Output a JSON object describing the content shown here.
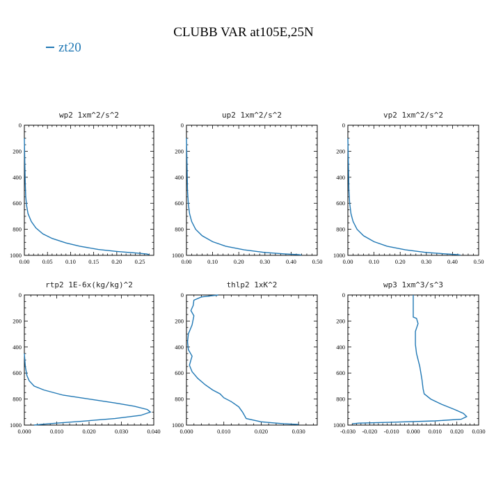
{
  "title": "CLUBB VAR at105E,25N",
  "legend": {
    "label": "zt20",
    "color": "#1f77b4"
  },
  "chart_data": [
    {
      "type": "line",
      "title": "wp2  1xm^2/s^2",
      "xlim": [
        0,
        0.28
      ],
      "ylim": [
        0,
        1000
      ],
      "xticks": [
        0,
        0.05,
        0.1,
        0.15,
        0.2,
        0.25
      ],
      "xtick_labels": [
        "0.00",
        "0.05",
        "0.10",
        "0.15",
        "0.20",
        "0.25"
      ],
      "yticks": [
        0,
        200,
        400,
        600,
        800,
        1000
      ],
      "ytick_labels": [
        "0",
        "200",
        "400",
        "600",
        "800",
        "1000"
      ],
      "series": [
        {
          "name": "zt20",
          "color": "#1f77b4",
          "x": [
            0.0,
            0.001,
            0.002,
            0.003,
            0.005,
            0.008,
            0.015,
            0.025,
            0.04,
            0.06,
            0.09,
            0.12,
            0.16,
            0.2,
            0.24,
            0.265,
            0.27
          ],
          "y": [
            100,
            300,
            450,
            550,
            620,
            680,
            740,
            790,
            835,
            870,
            905,
            930,
            955,
            970,
            982,
            990,
            995
          ]
        }
      ]
    },
    {
      "type": "line",
      "title": "up2  1xm^2/s^2",
      "xlim": [
        0,
        0.5
      ],
      "ylim": [
        0,
        1000
      ],
      "xticks": [
        0,
        0.1,
        0.2,
        0.3,
        0.4,
        0.5
      ],
      "xtick_labels": [
        "0.00",
        "0.10",
        "0.20",
        "0.30",
        "0.40",
        "0.50"
      ],
      "yticks": [
        0,
        200,
        400,
        600,
        800,
        1000
      ],
      "ytick_labels": [
        "0",
        "200",
        "400",
        "600",
        "800",
        "1000"
      ],
      "series": [
        {
          "name": "zt20",
          "color": "#1f77b4",
          "x": [
            0.0,
            0.002,
            0.004,
            0.007,
            0.012,
            0.02,
            0.035,
            0.06,
            0.1,
            0.15,
            0.22,
            0.3,
            0.38,
            0.43,
            0.44
          ],
          "y": [
            100,
            300,
            500,
            600,
            680,
            740,
            800,
            850,
            895,
            930,
            958,
            978,
            990,
            995,
            998
          ]
        }
      ]
    },
    {
      "type": "line",
      "title": "vp2  1xm^2/s^2",
      "xlim": [
        0,
        0.5
      ],
      "ylim": [
        0,
        1000
      ],
      "xticks": [
        0,
        0.1,
        0.2,
        0.3,
        0.4,
        0.5
      ],
      "xtick_labels": [
        "0.00",
        "0.10",
        "0.20",
        "0.30",
        "0.40",
        "0.50"
      ],
      "yticks": [
        0,
        200,
        400,
        600,
        800,
        1000
      ],
      "ytick_labels": [
        "0",
        "200",
        "400",
        "600",
        "800",
        "1000"
      ],
      "series": [
        {
          "name": "zt20",
          "color": "#1f77b4",
          "x": [
            0.0,
            0.002,
            0.004,
            0.007,
            0.012,
            0.02,
            0.035,
            0.06,
            0.1,
            0.15,
            0.22,
            0.3,
            0.38,
            0.42,
            0.43
          ],
          "y": [
            100,
            300,
            500,
            600,
            680,
            740,
            800,
            850,
            895,
            930,
            958,
            978,
            990,
            995,
            998
          ]
        }
      ]
    },
    {
      "type": "line",
      "title": "rtp2  1E-6x(kg/kg)^2",
      "xlim": [
        0,
        0.04
      ],
      "ylim": [
        0,
        1000
      ],
      "xticks": [
        0,
        0.01,
        0.02,
        0.03,
        0.04
      ],
      "xtick_labels": [
        "0.000",
        "0.010",
        "0.020",
        "0.030",
        "0.040"
      ],
      "yticks": [
        0,
        200,
        400,
        600,
        800,
        1000
      ],
      "ytick_labels": [
        "0",
        "200",
        "400",
        "600",
        "800",
        "1000"
      ],
      "series": [
        {
          "name": "zt20",
          "color": "#1f77b4",
          "x": [
            0.0,
            0.0003,
            0.0008,
            0.0015,
            0.003,
            0.006,
            0.012,
            0.02,
            0.028,
            0.034,
            0.038,
            0.039,
            0.036,
            0.028,
            0.018,
            0.01,
            0.005,
            0.003
          ],
          "y": [
            450,
            550,
            620,
            660,
            700,
            730,
            770,
            800,
            830,
            855,
            880,
            900,
            925,
            950,
            970,
            985,
            995,
            1000
          ]
        }
      ]
    },
    {
      "type": "line",
      "title": "thlp2  1xK^2",
      "xlim": [
        0,
        0.035
      ],
      "ylim": [
        0,
        1000
      ],
      "xticks": [
        0,
        0.01,
        0.02,
        0.03
      ],
      "xtick_labels": [
        "0.000",
        "0.010",
        "0.020",
        "0.030"
      ],
      "yticks": [
        0,
        200,
        400,
        600,
        800,
        1000
      ],
      "ytick_labels": [
        "0",
        "200",
        "400",
        "600",
        "800",
        "1000"
      ],
      "series": [
        {
          "name": "zt20",
          "color": "#1f77b4",
          "x": [
            0.0085,
            0.004,
            0.002,
            0.0018,
            0.0012,
            0.002,
            0.0015,
            0.0005,
            0.0003,
            0.0005,
            0.0015,
            0.0012,
            0.0008,
            0.0015,
            0.003,
            0.005,
            0.007,
            0.009,
            0.01,
            0.012,
            0.014,
            0.015,
            0.016,
            0.02,
            0.026,
            0.03
          ],
          "y": [
            0,
            15,
            40,
            80,
            120,
            160,
            230,
            300,
            360,
            420,
            470,
            500,
            540,
            590,
            640,
            690,
            730,
            760,
            790,
            820,
            860,
            900,
            950,
            975,
            990,
            995
          ]
        }
      ]
    },
    {
      "type": "line",
      "title": "wp3  1xm^3/s^3",
      "xlim": [
        -0.03,
        0.03
      ],
      "ylim": [
        0,
        1000
      ],
      "xticks": [
        -0.03,
        -0.02,
        -0.01,
        0,
        0.01,
        0.02,
        0.03
      ],
      "xtick_labels": [
        "-0.030",
        "-0.020",
        "-0.010",
        "0.000",
        "0.010",
        "0.020",
        "0.030"
      ],
      "yticks": [
        0,
        200,
        400,
        600,
        800,
        1000
      ],
      "ytick_labels": [
        "0",
        "200",
        "400",
        "600",
        "800",
        "1000"
      ],
      "series": [
        {
          "name": "zt20",
          "color": "#1f77b4",
          "x": [
            0.0,
            0.0,
            0.0,
            0.0015,
            0.0022,
            0.001,
            0.001,
            0.0015,
            0.003,
            0.004,
            0.0045,
            0.005,
            0.008,
            0.013,
            0.019,
            0.023,
            0.0245,
            0.022,
            0.01,
            -0.01,
            -0.025,
            -0.028
          ],
          "y": [
            0,
            100,
            170,
            180,
            220,
            280,
            380,
            450,
            550,
            650,
            720,
            760,
            800,
            840,
            880,
            910,
            935,
            955,
            968,
            978,
            985,
            990
          ]
        }
      ]
    }
  ]
}
